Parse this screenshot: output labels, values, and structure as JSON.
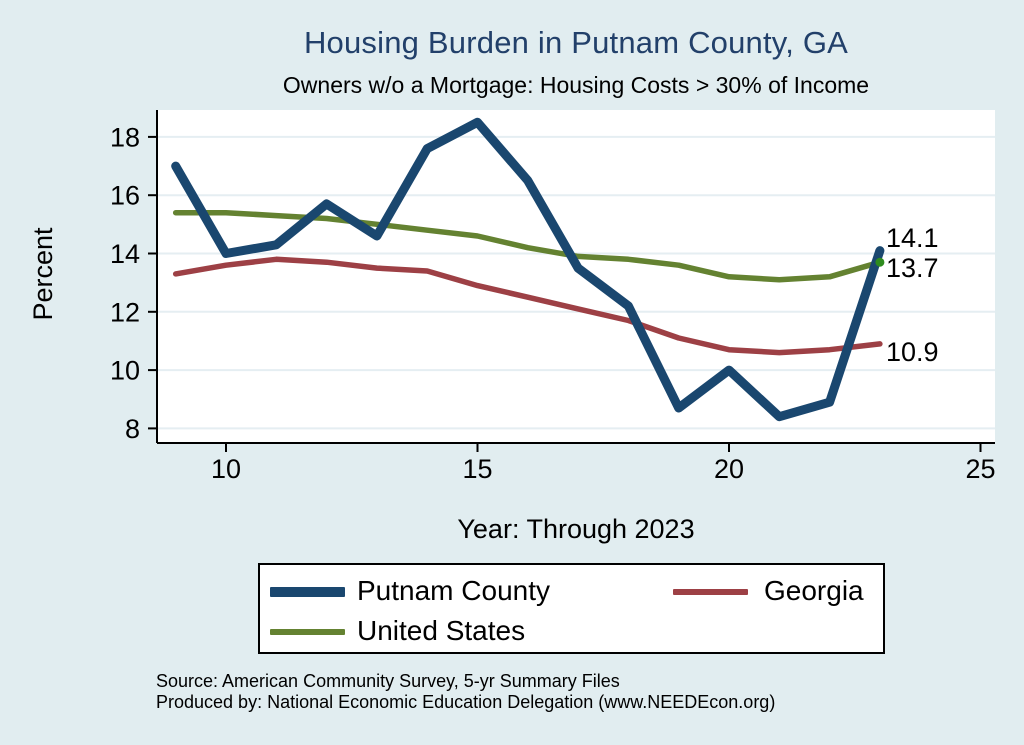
{
  "title": "Housing Burden in Putnam County, GA",
  "subtitle": "Owners w/o a Mortgage: Housing Costs > 30% of Income",
  "footer": {
    "line1": "Source: American Community Survey, 5-yr Summary Files",
    "line2": "Produced by: National Economic Education Delegation (www.NEEDEcon.org)"
  },
  "colors": {
    "background": "#e1edf0",
    "plot_background": "#ffffff",
    "gridline": "#e5eef2",
    "axis": "#000000",
    "title_text": "#22406a",
    "putnam": "#1a476f",
    "georgia": "#9d4045",
    "united_states": "#648231",
    "us_end_marker": "#2e8b1e"
  },
  "chart_data": {
    "type": "line",
    "title": "Housing Burden in Putnam County, GA",
    "subtitle": "Owners w/o a Mortgage: Housing Costs > 30% of Income",
    "xlabel": "Year: Through 2023",
    "ylabel": "Percent",
    "years": [
      2009,
      2010,
      2011,
      2012,
      2013,
      2014,
      2015,
      2016,
      2017,
      2018,
      2019,
      2020,
      2021,
      2022,
      2023
    ],
    "x_ticks": [
      {
        "value": 2010,
        "label": "10"
      },
      {
        "value": 2015,
        "label": "15"
      },
      {
        "value": 2020,
        "label": "20"
      },
      {
        "value": 2025,
        "label": "25"
      }
    ],
    "y_ticks": [
      {
        "value": 8,
        "label": "8"
      },
      {
        "value": 10,
        "label": "10"
      },
      {
        "value": 12,
        "label": "12"
      },
      {
        "value": 14,
        "label": "14"
      },
      {
        "value": 16,
        "label": "16"
      },
      {
        "value": 18,
        "label": "18"
      }
    ],
    "ylim": [
      7.5,
      18.9
    ],
    "xlim": [
      2008.6,
      2025.3
    ],
    "grid": true,
    "legend_position": "bottom",
    "series": [
      {
        "name": "Putnam County",
        "color": "#1a476f",
        "line_width": 9,
        "end_label": "14.1",
        "values": [
          17.0,
          14.0,
          14.3,
          15.7,
          14.6,
          17.6,
          18.5,
          16.5,
          13.5,
          12.2,
          8.7,
          10.0,
          8.4,
          8.9,
          14.1
        ]
      },
      {
        "name": "Georgia",
        "color": "#9d4045",
        "line_width": 5.5,
        "end_label": "10.9",
        "values": [
          13.3,
          13.6,
          13.8,
          13.7,
          13.5,
          13.4,
          12.9,
          12.5,
          12.1,
          11.7,
          11.1,
          10.7,
          10.6,
          10.7,
          10.9
        ]
      },
      {
        "name": "United States",
        "color": "#648231",
        "line_width": 5.5,
        "end_label": "13.7",
        "end_marker": true,
        "values": [
          15.4,
          15.4,
          15.3,
          15.2,
          15.0,
          14.8,
          14.6,
          14.2,
          13.9,
          13.8,
          13.6,
          13.2,
          13.1,
          13.2,
          13.7
        ]
      }
    ]
  }
}
